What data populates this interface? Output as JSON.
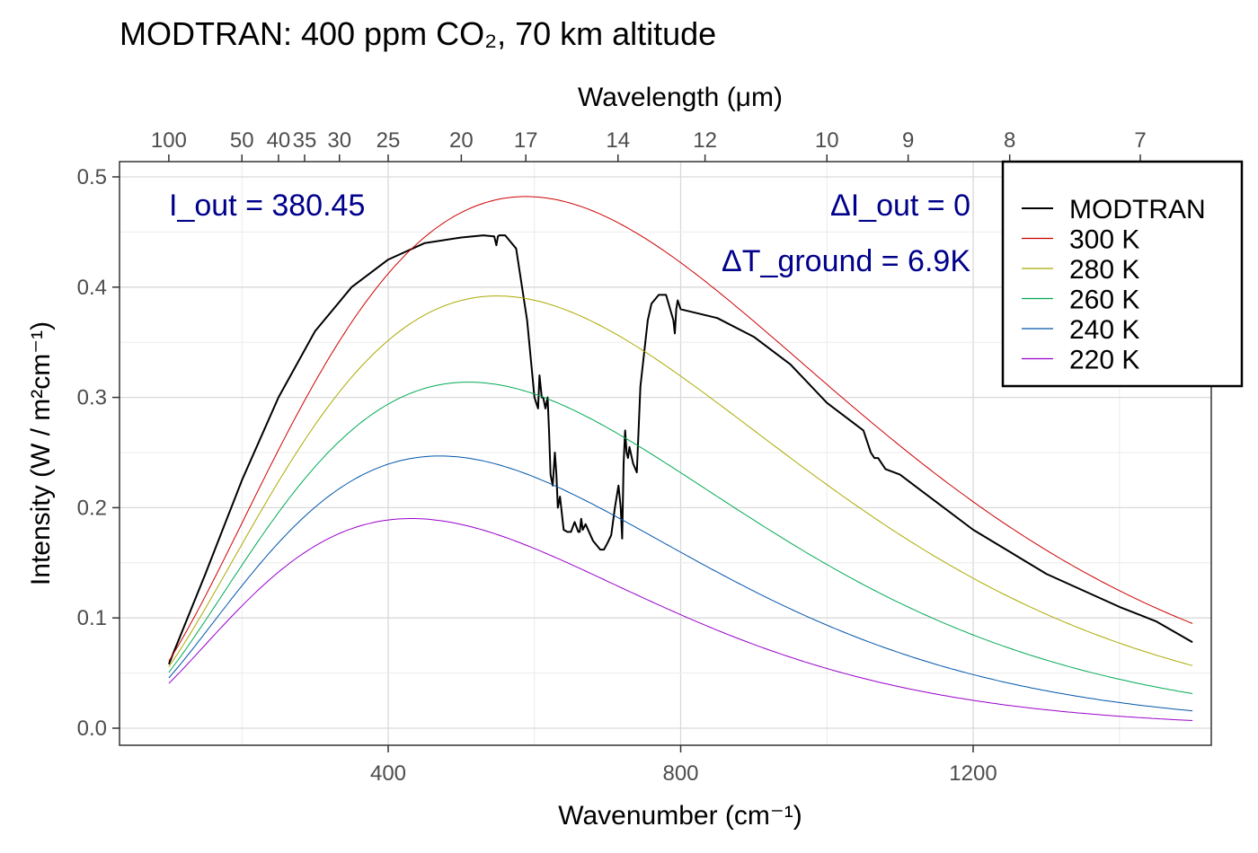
{
  "chart_data": {
    "type": "line",
    "title": "MODTRAN: 400 ppm CO₂, 70 km altitude",
    "xlabel": "Wavenumber (cm⁻¹)",
    "ylabel": "Intensity (W / m²cm⁻¹)",
    "x2label": "Wavelength (μm)",
    "xlim": [
      100,
      1500
    ],
    "ylim": [
      0.0,
      0.5
    ],
    "x_ticks": [
      400,
      800,
      1200
    ],
    "y_ticks": [
      "0.0",
      "0.1",
      "0.2",
      "0.3",
      "0.4",
      "0.5"
    ],
    "top_ticks": [
      {
        "label": "100",
        "um": 100
      },
      {
        "label": "50",
        "um": 50
      },
      {
        "label": "40",
        "um": 40
      },
      {
        "label": "35",
        "um": 35
      },
      {
        "label": "30",
        "um": 30
      },
      {
        "label": "25",
        "um": 25
      },
      {
        "label": "20",
        "um": 20
      },
      {
        "label": "17",
        "um": 17
      },
      {
        "label": "14",
        "um": 14
      },
      {
        "label": "12",
        "um": 12
      },
      {
        "label": "10",
        "um": 10
      },
      {
        "label": "9",
        "um": 9
      },
      {
        "label": "8",
        "um": 8
      },
      {
        "label": "7",
        "um": 7
      }
    ],
    "grid": true,
    "legend_position": "top-right",
    "annotations": {
      "iout": "I_out = 380.45",
      "delta_iout": "ΔI_out = 0",
      "delta_tground": "ΔT_ground = 6.9K"
    },
    "annotation_color": "#00008B",
    "series": [
      {
        "name": "MODTRAN",
        "color": "#000000",
        "x": [
          100,
          150,
          200,
          250,
          300,
          350,
          400,
          450,
          500,
          530,
          545,
          548,
          550,
          552,
          560,
          575,
          590,
          600,
          605,
          607,
          610,
          612,
          615,
          618,
          620,
          622,
          625,
          628,
          630,
          632,
          635,
          640,
          645,
          650,
          655,
          660,
          662,
          664,
          666,
          670,
          680,
          690,
          695,
          700,
          705,
          710,
          715,
          718,
          720,
          722,
          724,
          726,
          728,
          730,
          735,
          740,
          745,
          750,
          755,
          760,
          770,
          780,
          790,
          792,
          794,
          796,
          800,
          850,
          900,
          950,
          1000,
          1050,
          1060,
          1065,
          1070,
          1080,
          1100,
          1150,
          1200,
          1250,
          1300,
          1350,
          1400,
          1450,
          1500
        ],
        "y": [
          0.058,
          0.14,
          0.225,
          0.3,
          0.36,
          0.4,
          0.425,
          0.44,
          0.445,
          0.447,
          0.446,
          0.438,
          0.446,
          0.447,
          0.447,
          0.435,
          0.37,
          0.3,
          0.29,
          0.32,
          0.3,
          0.3,
          0.29,
          0.3,
          0.27,
          0.23,
          0.22,
          0.25,
          0.23,
          0.2,
          0.21,
          0.18,
          0.178,
          0.178,
          0.187,
          0.178,
          0.178,
          0.19,
          0.18,
          0.185,
          0.17,
          0.162,
          0.162,
          0.168,
          0.175,
          0.2,
          0.22,
          0.2,
          0.172,
          0.24,
          0.27,
          0.25,
          0.245,
          0.255,
          0.24,
          0.232,
          0.31,
          0.34,
          0.37,
          0.385,
          0.393,
          0.393,
          0.37,
          0.358,
          0.38,
          0.388,
          0.38,
          0.372,
          0.355,
          0.33,
          0.295,
          0.27,
          0.25,
          0.245,
          0.245,
          0.235,
          0.23,
          0.205,
          0.18,
          0.16,
          0.14,
          0.125,
          0.11,
          0.097,
          0.078
        ]
      },
      {
        "name": "300 K",
        "color": "#CC0000",
        "T": 300
      },
      {
        "name": "280 K",
        "color": "#AAAA00",
        "T": 280
      },
      {
        "name": "260 K",
        "color": "#00AA55",
        "T": 260
      },
      {
        "name": "240 K",
        "color": "#0055AA",
        "T": 240
      },
      {
        "name": "220 K",
        "color": "#9900CC",
        "T": 220
      }
    ]
  }
}
